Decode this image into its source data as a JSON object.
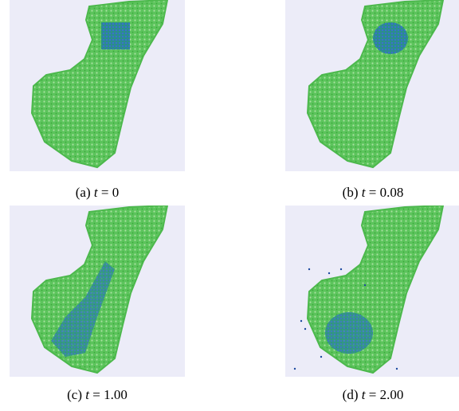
{
  "figure": {
    "panels": [
      {
        "label": "(a)",
        "var": "t",
        "value": "= 0"
      },
      {
        "label": "(b)",
        "var": "t",
        "value": "= 0.08"
      },
      {
        "label": "(c)",
        "var": "t",
        "value": "= 1.00"
      },
      {
        "label": "(d)",
        "var": "t",
        "value": "= 2.00"
      }
    ]
  }
}
